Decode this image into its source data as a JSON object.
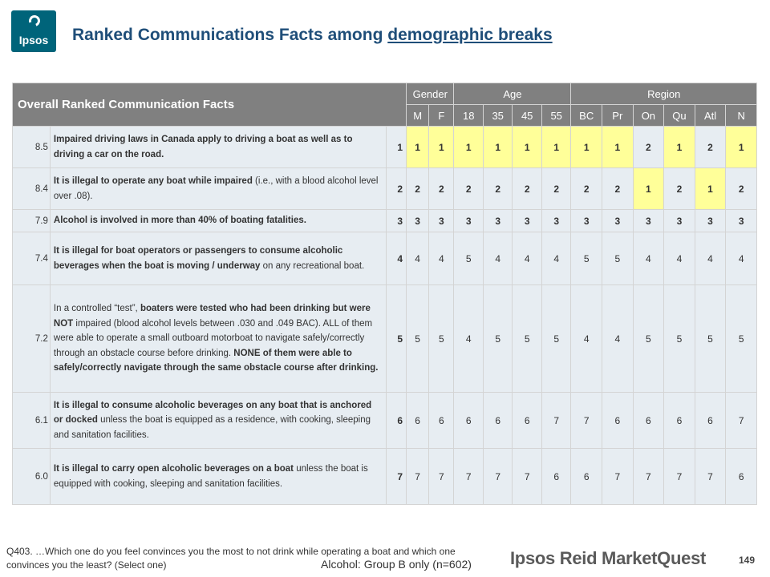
{
  "logo": {
    "text": "Ipsos"
  },
  "title": {
    "main": "Ranked Communications Facts among ",
    "underlined": "demographic breaks"
  },
  "table": {
    "main_header": "Overall Ranked Communication Facts",
    "groups": [
      "Gender",
      "Age",
      "Region"
    ],
    "columns": [
      "M",
      "F",
      "18",
      "35",
      "45",
      "55",
      "BC",
      "Pr",
      "On",
      "Qu",
      "Atl",
      "N"
    ],
    "rows": [
      {
        "score": "8.5",
        "fact": [
          [
            "Impaired driving laws in Canada apply to driving a boat as well as to driving a car on the road.",
            true
          ]
        ],
        "overall": "1",
        "values": [
          "1",
          "1",
          "1",
          "1",
          "1",
          "1",
          "1",
          "1",
          "2",
          "1",
          "2",
          "1"
        ],
        "highlight": [
          true,
          true,
          true,
          true,
          true,
          true,
          true,
          true,
          false,
          true,
          false,
          true
        ],
        "bold": true
      },
      {
        "score": "8.4",
        "fact": [
          [
            "It is illegal to operate any boat while impaired",
            true
          ],
          [
            " (i.e., with a blood alcohol level over .08).",
            false
          ]
        ],
        "overall": "2",
        "values": [
          "2",
          "2",
          "2",
          "2",
          "2",
          "2",
          "2",
          "2",
          "1",
          "2",
          "1",
          "2"
        ],
        "highlight": [
          false,
          false,
          false,
          false,
          false,
          false,
          false,
          false,
          true,
          false,
          true,
          false
        ],
        "bold": true
      },
      {
        "score": "7.9",
        "fact": [
          [
            "Alcohol is involved in more than 40% of boating fatalities.",
            true
          ]
        ],
        "overall": "3",
        "values": [
          "3",
          "3",
          "3",
          "3",
          "3",
          "3",
          "3",
          "3",
          "3",
          "3",
          "3",
          "3"
        ],
        "highlight": [
          false,
          false,
          false,
          false,
          false,
          false,
          false,
          false,
          false,
          false,
          false,
          false
        ],
        "bold": true
      },
      {
        "score": "7.4",
        "fact": [
          [
            "It is illegal for boat operators or passengers to consume alcoholic beverages when the boat is moving / underway",
            true
          ],
          [
            " on any recreational boat.",
            false
          ]
        ],
        "overall": "4",
        "values": [
          "4",
          "4",
          "5",
          "4",
          "4",
          "4",
          "5",
          "5",
          "4",
          "4",
          "4",
          "4"
        ],
        "highlight": [
          false,
          false,
          false,
          false,
          false,
          false,
          false,
          false,
          false,
          false,
          false,
          false
        ],
        "bold": false
      },
      {
        "score": "7.2",
        "fact": [
          [
            "In a controlled “test”, ",
            false
          ],
          [
            "boaters were tested who had been drinking but were NOT",
            true
          ],
          [
            " impaired (blood alcohol levels between .030 and .049 BAC).  ALL of them were able to operate a small outboard motorboat to navigate safely/correctly through an obstacle course before drinking. ",
            false
          ],
          [
            "NONE of them were able to safely/correctly navigate through the same obstacle course after drinking.",
            true
          ]
        ],
        "overall": "5",
        "values": [
          "5",
          "5",
          "4",
          "5",
          "5",
          "5",
          "4",
          "4",
          "5",
          "5",
          "5",
          "5"
        ],
        "highlight": [
          false,
          false,
          false,
          false,
          false,
          false,
          false,
          false,
          false,
          false,
          false,
          false
        ],
        "bold": false
      },
      {
        "score": "6.1",
        "fact": [
          [
            "It is illegal to consume alcoholic beverages on any boat that is anchored or docked",
            true
          ],
          [
            " unless the boat is equipped as a residence, with cooking, sleeping and sanitation facilities.",
            false
          ]
        ],
        "overall": "6",
        "values": [
          "6",
          "6",
          "6",
          "6",
          "6",
          "7",
          "7",
          "6",
          "6",
          "6",
          "6",
          "7"
        ],
        "highlight": [
          false,
          false,
          false,
          false,
          false,
          false,
          false,
          false,
          false,
          false,
          false,
          false
        ],
        "bold": false
      },
      {
        "score": "6.0",
        "fact": [
          [
            "It is illegal to carry open alcoholic beverages on a boat",
            true
          ],
          [
            " unless the boat is equipped with cooking, sleeping and sanitation facilities.",
            false
          ]
        ],
        "overall": "7",
        "values": [
          "7",
          "7",
          "7",
          "7",
          "7",
          "6",
          "6",
          "7",
          "7",
          "7",
          "7",
          "6"
        ],
        "highlight": [
          false,
          false,
          false,
          false,
          false,
          false,
          false,
          false,
          false,
          false,
          false,
          false
        ],
        "bold": false
      }
    ]
  },
  "footnote": "Q403.  …Which one do you feel convinces you the most to not drink while operating a boat and which one convinces you the least?  (Select one)",
  "group_note": "Alcohol: Group B only (n=602)",
  "brand": "Ipsos Reid MarketQuest",
  "page_number": "149",
  "colors": {
    "header_bg": "#808080",
    "cell_bg": "#e7edf2",
    "highlight": "#ffff99",
    "title": "#1f4e79"
  }
}
